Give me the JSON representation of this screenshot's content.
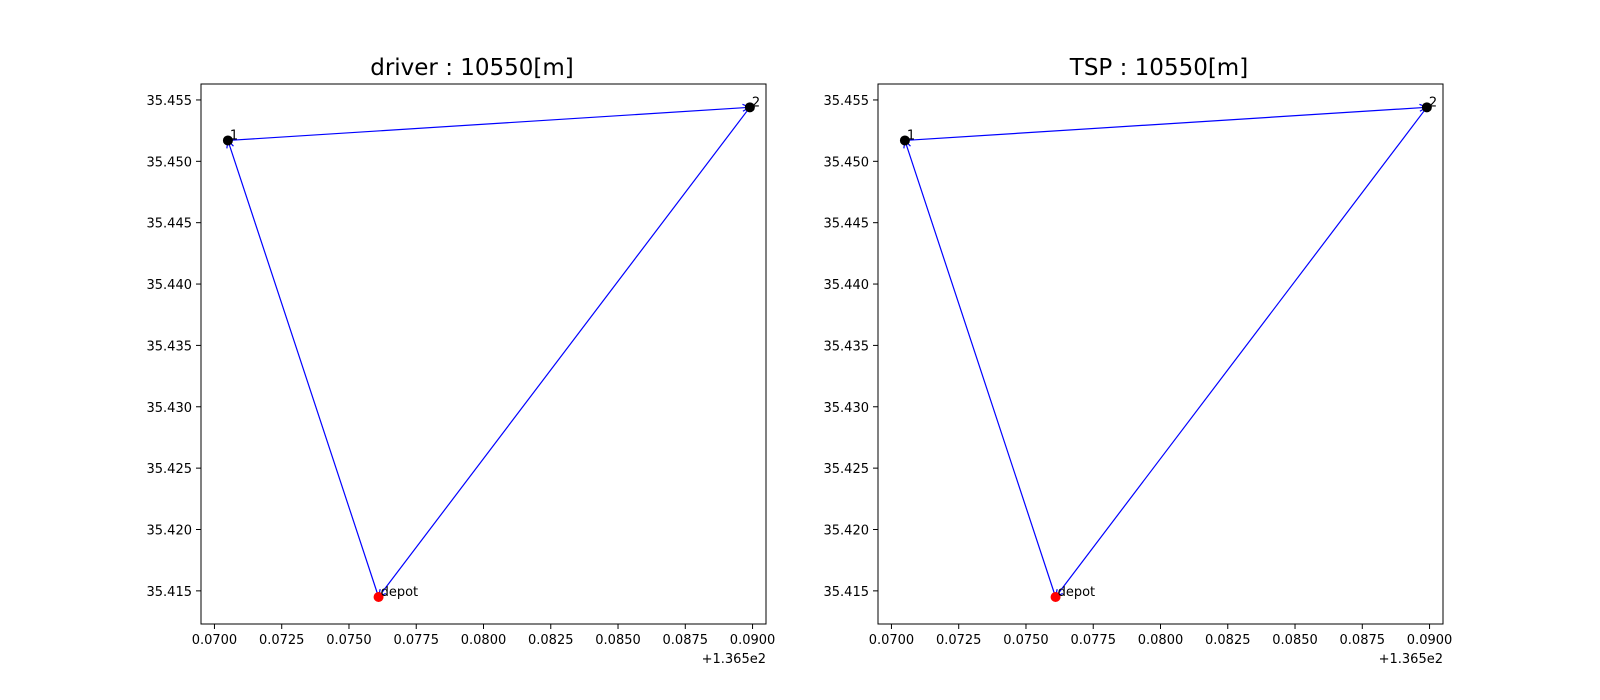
{
  "chart_data": [
    {
      "type": "scatter",
      "title": "driver : 10550[m]",
      "xlabel": "",
      "ylabel": "",
      "x_offset_label": "+1.365e2",
      "xlim": [
        0.0695,
        0.0905
      ],
      "ylim": [
        35.4123,
        35.4563
      ],
      "x_ticks": [
        0.07,
        0.0725,
        0.075,
        0.0775,
        0.08,
        0.0825,
        0.085,
        0.0875,
        0.09
      ],
      "x_tick_labels": [
        "0.0700",
        "0.0725",
        "0.0750",
        "0.0775",
        "0.0800",
        "0.0825",
        "0.0850",
        "0.0875",
        "0.0900"
      ],
      "y_ticks": [
        35.415,
        35.42,
        35.425,
        35.43,
        35.435,
        35.44,
        35.445,
        35.45,
        35.455
      ],
      "y_tick_labels": [
        "35.415",
        "35.420",
        "35.425",
        "35.430",
        "35.435",
        "35.440",
        "35.445",
        "35.450",
        "35.455"
      ],
      "grid": false,
      "points": [
        {
          "label": "depot",
          "x": 0.0761,
          "y": 35.4145,
          "color": "#ff0000"
        },
        {
          "label": "1",
          "x": 0.0705,
          "y": 35.4517,
          "color": "#000000"
        },
        {
          "label": "2",
          "x": 0.0899,
          "y": 35.4544,
          "color": "#000000"
        }
      ],
      "route": [
        "depot",
        "1",
        "2",
        "depot"
      ],
      "route_color": "#0000ff"
    },
    {
      "type": "scatter",
      "title": "TSP : 10550[m]",
      "xlabel": "",
      "ylabel": "",
      "x_offset_label": "+1.365e2",
      "xlim": [
        0.0695,
        0.0905
      ],
      "ylim": [
        35.4123,
        35.4563
      ],
      "x_ticks": [
        0.07,
        0.0725,
        0.075,
        0.0775,
        0.08,
        0.0825,
        0.085,
        0.0875,
        0.09
      ],
      "x_tick_labels": [
        "0.0700",
        "0.0725",
        "0.0750",
        "0.0775",
        "0.0800",
        "0.0825",
        "0.0850",
        "0.0875",
        "0.0900"
      ],
      "y_ticks": [
        35.415,
        35.42,
        35.425,
        35.43,
        35.435,
        35.44,
        35.445,
        35.45,
        35.455
      ],
      "y_tick_labels": [
        "35.415",
        "35.420",
        "35.425",
        "35.430",
        "35.435",
        "35.440",
        "35.445",
        "35.450",
        "35.455"
      ],
      "grid": false,
      "points": [
        {
          "label": "depot",
          "x": 0.0761,
          "y": 35.4145,
          "color": "#ff0000"
        },
        {
          "label": "1",
          "x": 0.0705,
          "y": 35.4517,
          "color": "#000000"
        },
        {
          "label": "2",
          "x": 0.0899,
          "y": 35.4544,
          "color": "#000000"
        }
      ],
      "route": [
        "depot",
        "1",
        "2",
        "depot"
      ],
      "route_color": "#0000ff"
    }
  ]
}
